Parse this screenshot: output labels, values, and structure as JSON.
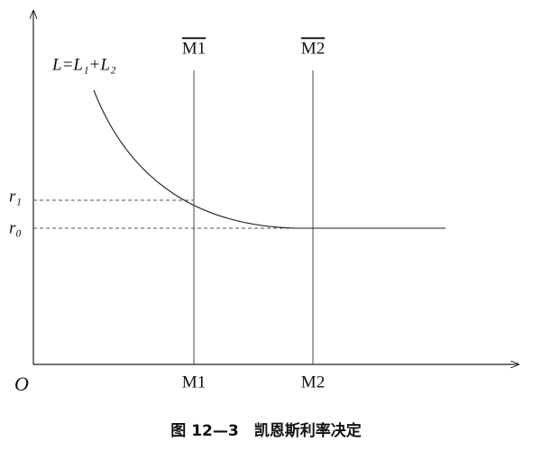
{
  "curve_label": "L=L₁+L₂",
  "supply_labels": [
    "M1",
    "M2"
  ],
  "x_labels": [
    "M1",
    "M2"
  ],
  "rate_labels": [
    "r₁",
    "r₀"
  ],
  "origin": "O",
  "caption": "图 12—3　凯恩斯利率决定"
}
